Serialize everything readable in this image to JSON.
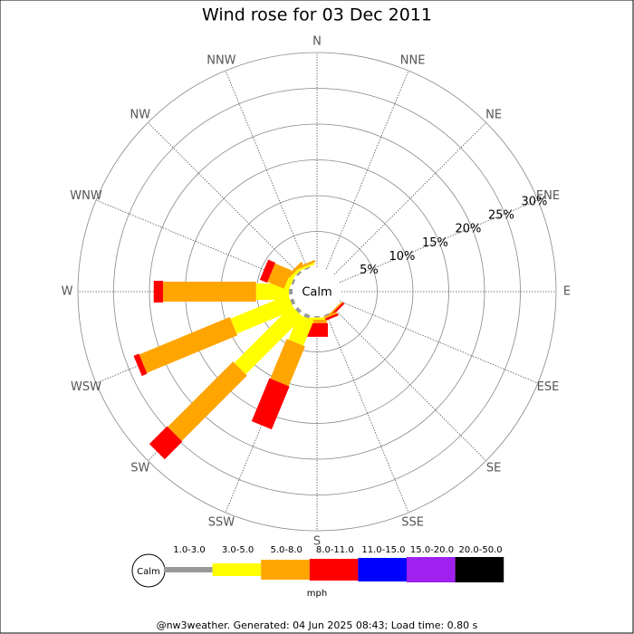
{
  "chart_data": {
    "type": "wind_rose",
    "title": "Wind rose for 03 Dec 2011",
    "directions": [
      "N",
      "NNE",
      "NE",
      "ENE",
      "E",
      "ESE",
      "SE",
      "SSE",
      "S",
      "SSW",
      "SW",
      "WSW",
      "W",
      "WNW",
      "NW",
      "NNW"
    ],
    "calm_label": "Calm",
    "rlim": [
      0,
      30
    ],
    "rticks": [
      {
        "value": 5,
        "label": "5%"
      },
      {
        "value": 10,
        "label": "10%"
      },
      {
        "value": 15,
        "label": "15%"
      },
      {
        "value": 20,
        "label": "20%"
      },
      {
        "value": 25,
        "label": "25%"
      },
      {
        "value": 30,
        "label": "30%"
      }
    ],
    "series": [
      {
        "name": "1.0-3.0",
        "color": "#999999",
        "values": [
          0,
          0,
          0,
          0,
          0,
          0,
          0,
          0.2,
          0.2,
          0.5,
          0.5,
          0.5,
          0.5,
          0.3,
          0.3,
          0.2
        ]
      },
      {
        "name": "3.0-5.0",
        "color": "#ffff00",
        "values": [
          0,
          0,
          0,
          0,
          0,
          0,
          0,
          0,
          0.3,
          3.8,
          11.3,
          8.7,
          4.6,
          0.7,
          0.4,
          0.3
        ]
      },
      {
        "name": "5.0-8.0",
        "color": "#ffa500",
        "values": [
          0,
          0,
          0,
          0,
          0,
          0,
          0.2,
          0.3,
          0.5,
          6.0,
          12.9,
          13.7,
          13.0,
          2.5,
          0.4,
          0.3
        ]
      },
      {
        "name": "8.0-11.0",
        "color": "#ff0000",
        "values": [
          0,
          0,
          0,
          0,
          0,
          0,
          0.3,
          0.3,
          1.9,
          6.5,
          3.5,
          0.8,
          1.3,
          1.1,
          0,
          0
        ]
      },
      {
        "name": "11.0-15.0",
        "color": "#0000ff",
        "values": [
          0,
          0,
          0,
          0,
          0,
          0,
          0,
          0,
          0,
          0,
          0,
          0,
          0,
          0,
          0,
          0
        ]
      },
      {
        "name": "15.0-20.0",
        "color": "#a020f0",
        "values": [
          0,
          0,
          0,
          0,
          0,
          0,
          0,
          0,
          0,
          0,
          0,
          0,
          0,
          0,
          0,
          0
        ]
      },
      {
        "name": "20.0-50.0",
        "color": "#000000",
        "values": [
          0,
          0,
          0,
          0,
          0,
          0,
          0,
          0,
          0,
          0,
          0,
          0,
          0,
          0,
          0,
          0
        ]
      }
    ],
    "unit": "mph",
    "footer": "@nw3weather. Generated: 04 Jun 2025 08:43; Load time: 0.80 s"
  }
}
